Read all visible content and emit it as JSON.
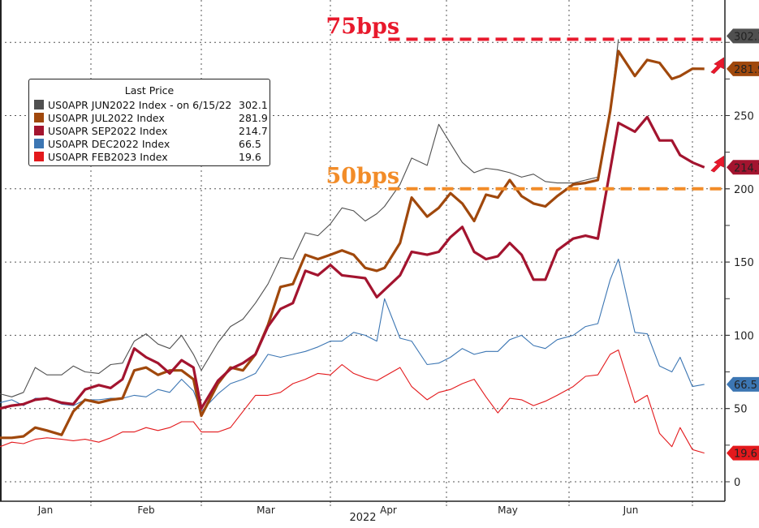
{
  "chart_data": {
    "type": "line",
    "title": "",
    "xlabel": "2022",
    "ylabel": "",
    "y_axis_side": "right",
    "ylim": [
      -10,
      330
    ],
    "yticks": [
      0,
      50,
      100,
      150,
      200,
      250
    ],
    "grid": true,
    "legend_placement": "top-left",
    "month_ticks": [
      "Jan",
      "Feb",
      "Mar",
      "Apr",
      "May",
      "Jun"
    ],
    "legend_title": "Last Price",
    "x": [
      "2022-01-01",
      "2022-01-05",
      "2022-01-09",
      "2022-01-13",
      "2022-01-17",
      "2022-01-22",
      "2022-01-26",
      "2022-01-30",
      "2022-02-03",
      "2022-02-06",
      "2022-02-09",
      "2022-02-12",
      "2022-02-15",
      "2022-02-18",
      "2022-02-21",
      "2022-02-24",
      "2022-02-27",
      "2022-03-01",
      "2022-03-05",
      "2022-03-08",
      "2022-03-11",
      "2022-03-14",
      "2022-03-17",
      "2022-03-20",
      "2022-03-23",
      "2022-03-26",
      "2022-03-29",
      "2022-04-01",
      "2022-04-04",
      "2022-04-07",
      "2022-04-10",
      "2022-04-13",
      "2022-04-15",
      "2022-04-19",
      "2022-04-22",
      "2022-04-26",
      "2022-04-29",
      "2022-05-02",
      "2022-05-05",
      "2022-05-08",
      "2022-05-11",
      "2022-05-14",
      "2022-05-17",
      "2022-05-20",
      "2022-05-23",
      "2022-05-26",
      "2022-05-29",
      "2022-06-02",
      "2022-06-05",
      "2022-06-08",
      "2022-06-11",
      "2022-06-13",
      "2022-06-17",
      "2022-06-20",
      "2022-06-23",
      "2022-06-26",
      "2022-06-28",
      "2022-07-01",
      "2022-07-04"
    ],
    "series": [
      {
        "name": "US0APR JUN2022 Index",
        "legend_suffix": "-  on 6/15/22",
        "last": "302.1",
        "color": "#505050",
        "weight": "thin",
        "values": [
          60,
          58,
          61,
          78,
          73,
          73,
          79,
          75,
          74,
          80,
          81,
          96,
          101,
          94,
          91,
          100,
          87,
          76,
          95,
          106,
          111,
          122,
          135,
          153,
          152,
          170,
          168,
          176,
          187,
          185,
          178,
          183,
          188,
          203,
          221,
          216,
          244,
          231,
          218,
          211,
          214,
          213,
          211,
          208,
          210,
          205,
          204,
          204,
          206,
          208,
          253,
          302.1,
          null,
          null,
          null,
          null,
          null,
          null,
          null
        ]
      },
      {
        "name": "US0APR JUL2022 Index",
        "legend_suffix": "",
        "last": "281.9",
        "color": "#a0480c",
        "weight": "thick",
        "values": [
          30,
          30,
          31,
          37,
          35,
          32,
          48,
          56,
          54,
          56,
          57,
          76,
          78,
          73,
          76,
          76,
          70,
          45,
          67,
          78,
          76,
          87,
          107,
          133,
          135,
          155,
          152,
          155,
          158,
          155,
          146,
          144,
          146,
          163,
          194,
          181,
          187,
          197,
          190,
          178,
          196,
          194,
          206,
          195,
          190,
          188,
          195,
          203,
          204,
          206,
          253,
          294,
          277,
          288,
          286,
          275,
          277,
          282,
          281.9
        ]
      },
      {
        "name": "US0APR SEP2022 Index",
        "legend_suffix": "",
        "last": "214.7",
        "color": "#a3142f",
        "weight": "thick",
        "values": [
          50,
          52,
          53,
          56,
          57,
          54,
          53,
          63,
          66,
          64,
          70,
          91,
          85,
          81,
          74,
          83,
          78,
          50,
          69,
          77,
          81,
          87,
          106,
          118,
          122,
          144,
          141,
          148,
          141,
          140,
          139,
          126,
          131,
          141,
          157,
          155,
          157,
          167,
          174,
          157,
          152,
          154,
          163,
          155,
          138,
          138,
          158,
          166,
          168,
          166,
          213,
          245,
          239,
          249,
          233,
          233,
          223,
          218,
          214.7
        ]
      },
      {
        "name": "US0APR DEC2022 Index",
        "legend_suffix": "",
        "last": "66.5",
        "color": "#3c76b3",
        "weight": "thin",
        "values": [
          54,
          56,
          52,
          57,
          57,
          53,
          52,
          56,
          56,
          57,
          57,
          59,
          58,
          63,
          61,
          70,
          62,
          48,
          60,
          67,
          70,
          74,
          87,
          85,
          87,
          89,
          92,
          96,
          96,
          102,
          100,
          96,
          125,
          98,
          96,
          80,
          81,
          85,
          91,
          87,
          89,
          89,
          97,
          100,
          93,
          91,
          97,
          100,
          106,
          108,
          138,
          152,
          102,
          101,
          79,
          75,
          85,
          65,
          66.5
        ]
      },
      {
        "name": "US0APR FEB2023 Index",
        "legend_suffix": "",
        "last": "19.6",
        "color": "#e3191c",
        "weight": "thin",
        "values": [
          24,
          27,
          26,
          29,
          30,
          29,
          28,
          29,
          27,
          30,
          34,
          34,
          37,
          35,
          37,
          41,
          41,
          34,
          34,
          37,
          48,
          59,
          59,
          61,
          67,
          70,
          74,
          73,
          80,
          74,
          71,
          69,
          72,
          78,
          65,
          56,
          61,
          63,
          67,
          70,
          58,
          47,
          57,
          56,
          52,
          55,
          59,
          65,
          72,
          73,
          87,
          90,
          54,
          59,
          33,
          24,
          37,
          22,
          19.6
        ]
      }
    ],
    "annotations": [
      {
        "text": "75bps",
        "level": 302.1,
        "color": "#e8192c",
        "from_date": "2022-04-16"
      },
      {
        "text": "50bps",
        "level": 200,
        "color": "#f28c28",
        "from_date": "2022-04-16"
      }
    ],
    "arrows": [
      {
        "series": "US0APR JUL2022 Index",
        "color": "#e8192c",
        "icon": "arrow-up-right-icon"
      },
      {
        "series": "US0APR SEP2022 Index",
        "color": "#e8192c",
        "icon": "arrow-up-right-icon"
      }
    ]
  }
}
